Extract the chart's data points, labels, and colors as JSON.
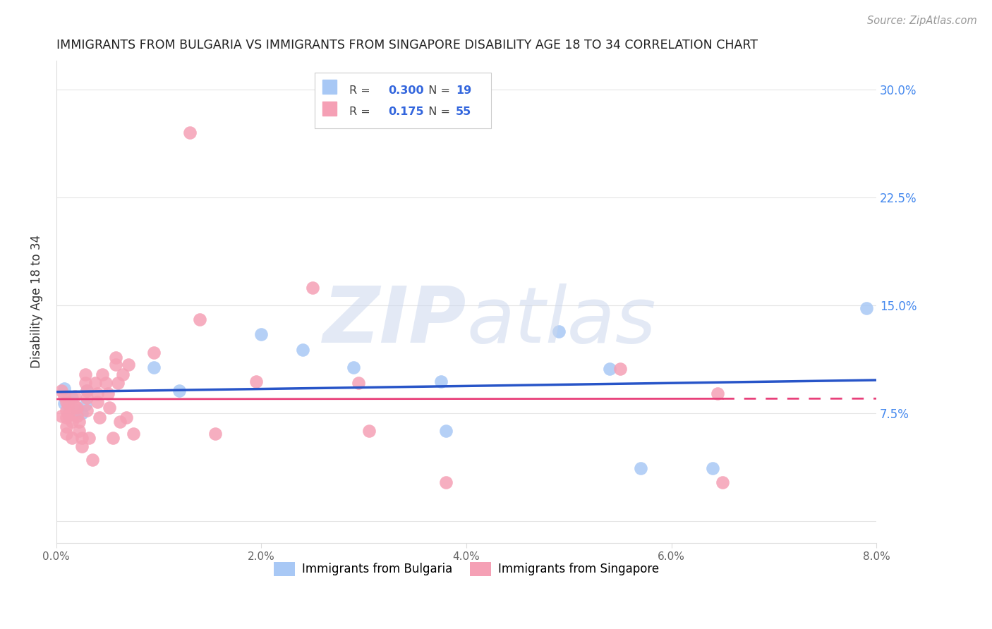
{
  "title": "IMMIGRANTS FROM BULGARIA VS IMMIGRANTS FROM SINGAPORE DISABILITY AGE 18 TO 34 CORRELATION CHART",
  "source": "Source: ZipAtlas.com",
  "ylabel_label": "Disability Age 18 to 34",
  "xlim": [
    0.0,
    0.08
  ],
  "ylim": [
    -0.015,
    0.32
  ],
  "xticks": [
    0.0,
    0.02,
    0.04,
    0.06,
    0.08
  ],
  "xtick_labels": [
    "0.0%",
    "2.0%",
    "4.0%",
    "6.0%",
    "8.0%"
  ],
  "yticks": [
    0.0,
    0.075,
    0.15,
    0.225,
    0.3
  ],
  "ytick_labels": [
    "",
    "7.5%",
    "15.0%",
    "22.5%",
    "30.0%"
  ],
  "legend1_R": "0.300",
  "legend1_N": "19",
  "legend2_R": "0.175",
  "legend2_N": "55",
  "bulgaria_color": "#a8c8f5",
  "singapore_color": "#f5a0b5",
  "trend_bulgaria_color": "#2855c8",
  "trend_singapore_color": "#e8407a",
  "bulgaria_scatter_x": [
    0.0008,
    0.0008,
    0.0015,
    0.002,
    0.0025,
    0.0028,
    0.003,
    0.0095,
    0.012,
    0.02,
    0.024,
    0.029,
    0.0375,
    0.038,
    0.049,
    0.054,
    0.057,
    0.064,
    0.079
  ],
  "bulgaria_scatter_y": [
    0.092,
    0.082,
    0.086,
    0.077,
    0.075,
    0.081,
    0.091,
    0.107,
    0.091,
    0.13,
    0.119,
    0.107,
    0.097,
    0.063,
    0.132,
    0.106,
    0.037,
    0.037,
    0.148
  ],
  "singapore_scatter_x": [
    0.0005,
    0.0005,
    0.0008,
    0.001,
    0.001,
    0.001,
    0.001,
    0.001,
    0.0012,
    0.0012,
    0.0015,
    0.0015,
    0.0018,
    0.0018,
    0.002,
    0.002,
    0.0022,
    0.0022,
    0.0025,
    0.0025,
    0.0028,
    0.0028,
    0.003,
    0.003,
    0.003,
    0.0032,
    0.0035,
    0.0038,
    0.004,
    0.004,
    0.0042,
    0.0045,
    0.0048,
    0.005,
    0.0052,
    0.0055,
    0.0058,
    0.0058,
    0.006,
    0.0062,
    0.0065,
    0.0068,
    0.007,
    0.0075,
    0.0095,
    0.014,
    0.0155,
    0.0195,
    0.025,
    0.0295,
    0.0305,
    0.038,
    0.055,
    0.0645,
    0.065
  ],
  "singapore_scatter_y": [
    0.091,
    0.073,
    0.087,
    0.083,
    0.077,
    0.072,
    0.066,
    0.061,
    0.081,
    0.074,
    0.069,
    0.058,
    0.087,
    0.08,
    0.079,
    0.073,
    0.069,
    0.063,
    0.058,
    0.052,
    0.102,
    0.096,
    0.091,
    0.086,
    0.077,
    0.058,
    0.043,
    0.096,
    0.089,
    0.083,
    0.072,
    0.102,
    0.096,
    0.089,
    0.079,
    0.058,
    0.114,
    0.109,
    0.096,
    0.069,
    0.102,
    0.072,
    0.109,
    0.061,
    0.117,
    0.14,
    0.061,
    0.097,
    0.162,
    0.096,
    0.063,
    0.027,
    0.106,
    0.089,
    0.027
  ],
  "singapore_outlier_x": [
    0.013
  ],
  "singapore_outlier_y": [
    0.27
  ],
  "sg_trend_end_x": 0.065,
  "sg_trend_dash_end_x": 0.08
}
